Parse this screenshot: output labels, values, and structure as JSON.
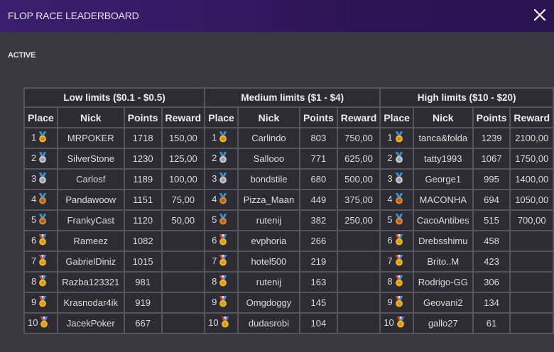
{
  "header": {
    "title": "FLOP RACE LEADERBOARD",
    "close_icon": "close-icon"
  },
  "section": {
    "label": "ACTIVE"
  },
  "columns": {
    "place": "Place",
    "nick": "Nick",
    "points": "Points",
    "reward": "Reward"
  },
  "colors": {
    "header_bg": "#361a66",
    "page_bg": "#3a3940",
    "cell_bg": "#2d2c32",
    "border": "#56555b",
    "gold": "#f0b429",
    "silver": "#c8c8cc",
    "bronze": "#d88a3a",
    "ribbon_blue": "#3a8fd6"
  },
  "groups": [
    {
      "title": "Low limits ($0.1 - $0.5)",
      "rows": [
        {
          "place": "1",
          "medal": "gold",
          "nick": "MRPOKER",
          "points": "1718",
          "reward": "150,00"
        },
        {
          "place": "2",
          "medal": "silver",
          "nick": "SilverStone",
          "points": "1230",
          "reward": "125,00"
        },
        {
          "place": "3",
          "medal": "silver",
          "nick": "Carlosf",
          "points": "1189",
          "reward": "100,00"
        },
        {
          "place": "4",
          "medal": "bronze",
          "nick": "Pandawoow",
          "points": "1151",
          "reward": "75,00"
        },
        {
          "place": "5",
          "medal": "bronze",
          "nick": "FrankyCast",
          "points": "1120",
          "reward": "50,00"
        },
        {
          "place": "6",
          "medal": "participant",
          "nick": "Rameez",
          "points": "1082",
          "reward": ""
        },
        {
          "place": "7",
          "medal": "participant",
          "nick": "GabrielDiniz",
          "points": "1015",
          "reward": ""
        },
        {
          "place": "8",
          "medal": "participant",
          "nick": "Razba123321",
          "points": "981",
          "reward": ""
        },
        {
          "place": "9",
          "medal": "participant",
          "nick": "Krasnodar4ik",
          "points": "919",
          "reward": ""
        },
        {
          "place": "10",
          "medal": "participant",
          "nick": "JacekPoker",
          "points": "667",
          "reward": ""
        }
      ]
    },
    {
      "title": "Medium limits ($1 - $4)",
      "rows": [
        {
          "place": "1",
          "medal": "gold",
          "nick": "Carlindo",
          "points": "803",
          "reward": "750,00"
        },
        {
          "place": "2",
          "medal": "silver",
          "nick": "Sallooo",
          "points": "771",
          "reward": "625,00"
        },
        {
          "place": "3",
          "medal": "silver",
          "nick": "bondstile",
          "points": "680",
          "reward": "500,00"
        },
        {
          "place": "4",
          "medal": "bronze",
          "nick": "Pizza_Maan",
          "points": "449",
          "reward": "375,00"
        },
        {
          "place": "5",
          "medal": "bronze",
          "nick": "rutenij",
          "points": "382",
          "reward": "250,00"
        },
        {
          "place": "6",
          "medal": "participant",
          "nick": "evphoria",
          "points": "266",
          "reward": ""
        },
        {
          "place": "7",
          "medal": "participant",
          "nick": "hotel500",
          "points": "219",
          "reward": ""
        },
        {
          "place": "8",
          "medal": "participant",
          "nick": "rutenij",
          "points": "163",
          "reward": ""
        },
        {
          "place": "9",
          "medal": "participant",
          "nick": "Omgdoggy",
          "points": "145",
          "reward": ""
        },
        {
          "place": "10",
          "medal": "participant",
          "nick": "dudasrobi",
          "points": "104",
          "reward": ""
        }
      ]
    },
    {
      "title": "High limits ($10 - $20)",
      "rows": [
        {
          "place": "1",
          "medal": "gold",
          "nick": "tanca&folda",
          "points": "1239",
          "reward": "2100,00"
        },
        {
          "place": "2",
          "medal": "silver",
          "nick": "tatty1993",
          "points": "1067",
          "reward": "1750,00"
        },
        {
          "place": "3",
          "medal": "silver",
          "nick": "George1",
          "points": "995",
          "reward": "1400,00"
        },
        {
          "place": "4",
          "medal": "bronze",
          "nick": "MACONHA",
          "points": "694",
          "reward": "1050,00"
        },
        {
          "place": "5",
          "medal": "bronze",
          "nick": "CacoAntibes",
          "points": "515",
          "reward": "700,00"
        },
        {
          "place": "6",
          "medal": "participant",
          "nick": "Drebsshimu",
          "points": "458",
          "reward": ""
        },
        {
          "place": "7",
          "medal": "participant",
          "nick": "Brito..M",
          "points": "423",
          "reward": ""
        },
        {
          "place": "8",
          "medal": "participant",
          "nick": "Rodrigo-GG",
          "points": "306",
          "reward": ""
        },
        {
          "place": "9",
          "medal": "participant",
          "nick": "Geovani2",
          "points": "134",
          "reward": ""
        },
        {
          "place": "10",
          "medal": "participant",
          "nick": "gallo27",
          "points": "61",
          "reward": ""
        }
      ]
    }
  ]
}
